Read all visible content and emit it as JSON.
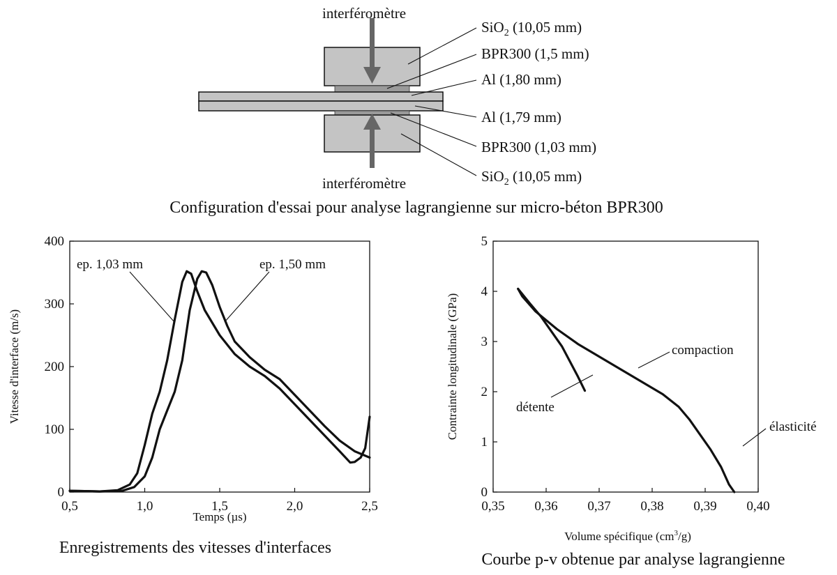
{
  "colors": {
    "block_gray": "#c4c4c4",
    "ink": "#111111",
    "arrow_gray": "#666666",
    "concrete_gray": "#9a9a9a"
  },
  "diagram": {
    "label_top": "interféromètre",
    "label_bottom": "interféromètre",
    "layers": [
      {
        "base": "SiO",
        "sub": "2",
        "rest": " (10,05 mm)"
      },
      {
        "base": "BPR300 (1,5 mm)",
        "sub": "",
        "rest": ""
      },
      {
        "base": "Al (1,80 mm)",
        "sub": "",
        "rest": ""
      },
      {
        "base": "Al (1,79 mm)",
        "sub": "",
        "rest": ""
      },
      {
        "base": "BPR300 (1,03 mm)",
        "sub": "",
        "rest": ""
      },
      {
        "base": "SiO",
        "sub": "2",
        "rest": " (10,05 mm)"
      }
    ],
    "caption": "Configuration d'essai pour analyse lagrangienne sur micro-béton BPR300"
  },
  "chart_data": [
    {
      "type": "line",
      "xlabel": "Temps (µs)",
      "ylabel": "Vitesse d'interface (m/s)",
      "xlim": [
        0.5,
        2.5
      ],
      "ylim": [
        0,
        400
      ],
      "x_ticks": [
        "0,5",
        "1,0",
        "1,5",
        "2,0",
        "2,5"
      ],
      "x_tick_values": [
        0.5,
        1.0,
        1.5,
        2.0,
        2.5
      ],
      "y_ticks": [
        "0",
        "100",
        "200",
        "300",
        "400"
      ],
      "y_tick_values": [
        0,
        100,
        200,
        300,
        400
      ],
      "series": [
        {
          "name": "ep. 1,03 mm",
          "points": [
            [
              0.5,
              2
            ],
            [
              0.7,
              1
            ],
            [
              0.82,
              3
            ],
            [
              0.9,
              12
            ],
            [
              0.95,
              30
            ],
            [
              1.0,
              75
            ],
            [
              1.05,
              125
            ],
            [
              1.1,
              160
            ],
            [
              1.15,
              210
            ],
            [
              1.2,
              275
            ],
            [
              1.25,
              335
            ],
            [
              1.28,
              352
            ],
            [
              1.31,
              348
            ],
            [
              1.35,
              320
            ],
            [
              1.4,
              290
            ],
            [
              1.5,
              250
            ],
            [
              1.6,
              220
            ],
            [
              1.7,
              200
            ],
            [
              1.8,
              185
            ],
            [
              1.9,
              165
            ],
            [
              2.0,
              140
            ],
            [
              2.1,
              115
            ],
            [
              2.2,
              90
            ],
            [
              2.3,
              65
            ],
            [
              2.37,
              47
            ],
            [
              2.4,
              48
            ],
            [
              2.44,
              55
            ],
            [
              2.47,
              70
            ],
            [
              2.5,
              120
            ]
          ]
        },
        {
          "name": "ep. 1,50 mm",
          "points": [
            [
              0.5,
              2
            ],
            [
              0.7,
              1
            ],
            [
              0.85,
              2
            ],
            [
              0.93,
              8
            ],
            [
              1.0,
              25
            ],
            [
              1.05,
              55
            ],
            [
              1.1,
              100
            ],
            [
              1.15,
              130
            ],
            [
              1.2,
              160
            ],
            [
              1.25,
              210
            ],
            [
              1.3,
              290
            ],
            [
              1.35,
              340
            ],
            [
              1.38,
              352
            ],
            [
              1.41,
              350
            ],
            [
              1.45,
              330
            ],
            [
              1.5,
              295
            ],
            [
              1.55,
              265
            ],
            [
              1.6,
              240
            ],
            [
              1.7,
              215
            ],
            [
              1.8,
              195
            ],
            [
              1.9,
              180
            ],
            [
              2.0,
              155
            ],
            [
              2.1,
              130
            ],
            [
              2.2,
              105
            ],
            [
              2.3,
              82
            ],
            [
              2.4,
              65
            ],
            [
              2.5,
              55
            ]
          ]
        }
      ],
      "annotations": [
        "ep. 1,03 mm",
        "ep. 1,50 mm"
      ],
      "caption": "Enregistrements des vitesses d'interfaces"
    },
    {
      "type": "line",
      "xlabel_pre": "Volume spécifique  (cm",
      "xlabel_sup": "3",
      "xlabel_post": "/g)",
      "ylabel": "Contrainte longitudinale (GPa)",
      "xlim": [
        0.35,
        0.4
      ],
      "ylim": [
        0,
        5
      ],
      "x_ticks": [
        "0,35",
        "0,36",
        "0,37",
        "0,38",
        "0,39",
        "0,40"
      ],
      "x_tick_values": [
        0.35,
        0.36,
        0.37,
        0.38,
        0.39,
        0.4
      ],
      "y_ticks": [
        "0",
        "1",
        "2",
        "3",
        "4",
        "5"
      ],
      "y_tick_values": [
        0,
        1,
        2,
        3,
        4,
        5
      ],
      "series": [
        {
          "name": "compaction",
          "points": [
            [
              0.3955,
              0
            ],
            [
              0.3945,
              0.15
            ],
            [
              0.393,
              0.5
            ],
            [
              0.391,
              0.85
            ],
            [
              0.389,
              1.15
            ],
            [
              0.387,
              1.45
            ],
            [
              0.385,
              1.7
            ],
            [
              0.382,
              1.95
            ],
            [
              0.378,
              2.2
            ],
            [
              0.374,
              2.45
            ],
            [
              0.37,
              2.7
            ],
            [
              0.366,
              2.95
            ],
            [
              0.362,
              3.25
            ],
            [
              0.358,
              3.6
            ],
            [
              0.3555,
              3.9
            ],
            [
              0.3547,
              4.05
            ]
          ]
        },
        {
          "name": "détente",
          "points": [
            [
              0.3547,
              4.05
            ],
            [
              0.357,
              3.75
            ],
            [
              0.359,
              3.5
            ],
            [
              0.361,
              3.2
            ],
            [
              0.363,
              2.9
            ],
            [
              0.365,
              2.5
            ],
            [
              0.366,
              2.3
            ],
            [
              0.3673,
              2.02
            ]
          ]
        }
      ],
      "annotations": [
        "compaction",
        "détente",
        "élasticité"
      ],
      "caption": "Courbe p-v obtenue par analyse lagrangienne"
    }
  ]
}
